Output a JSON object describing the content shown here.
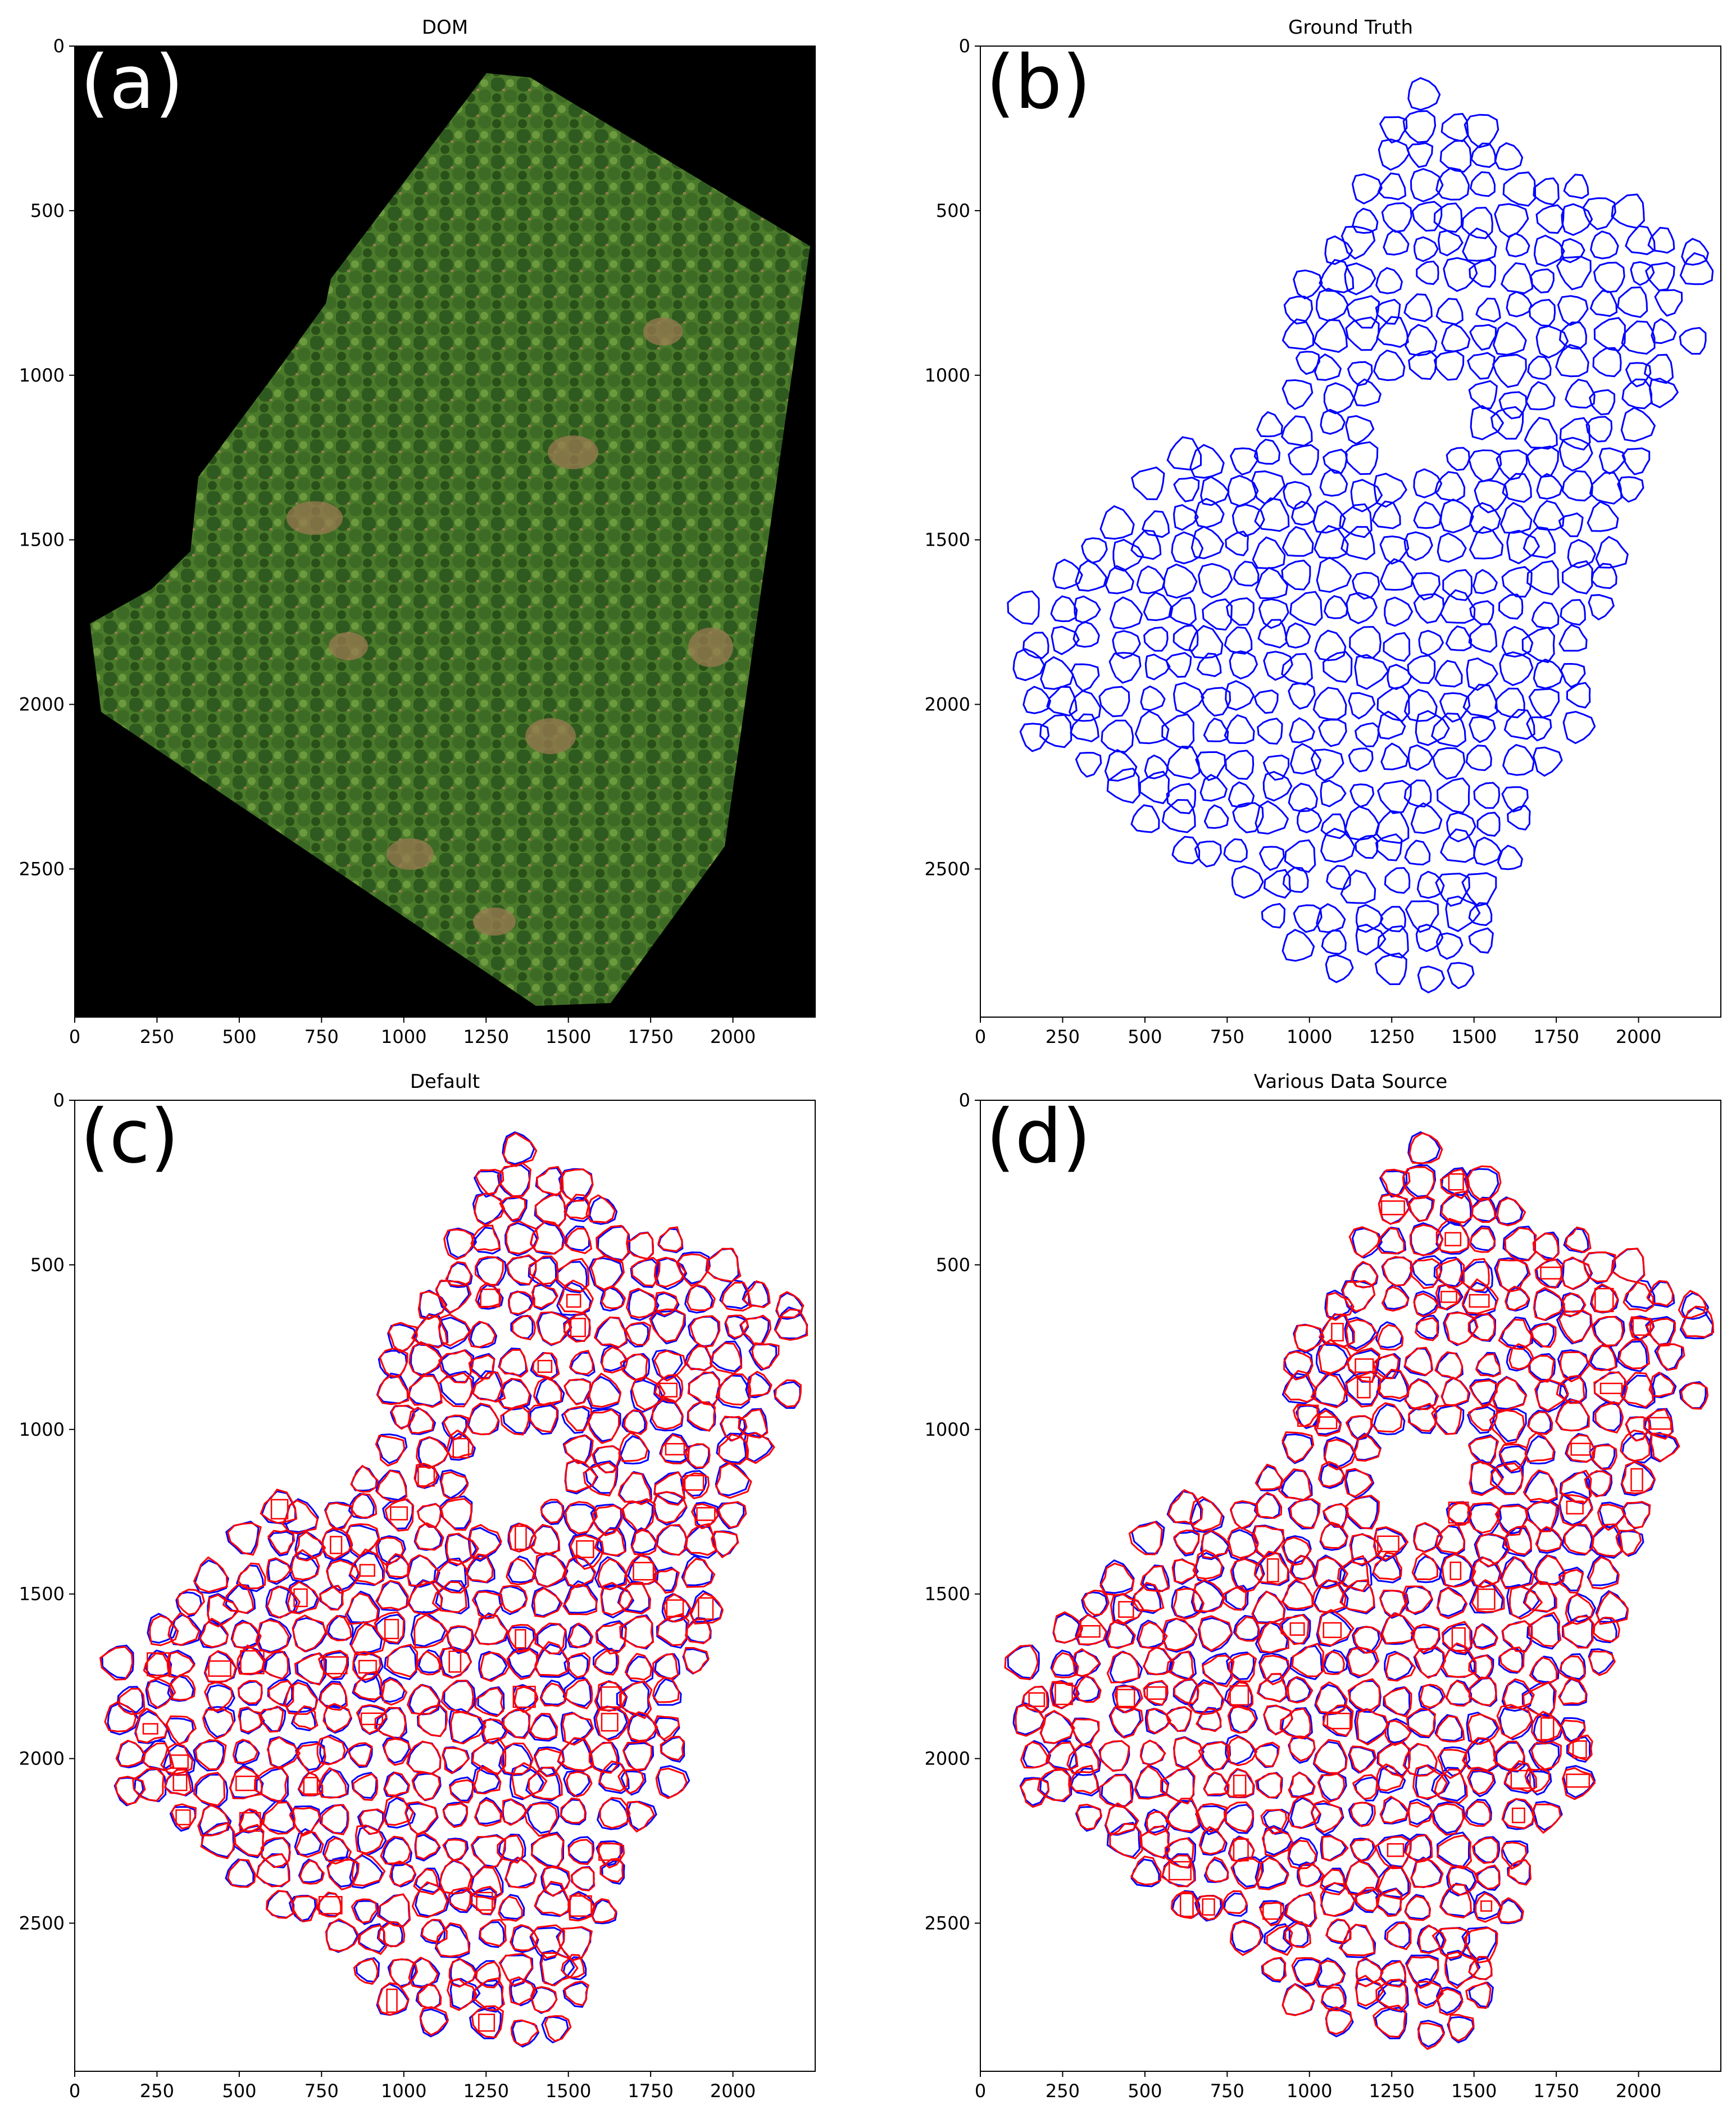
{
  "figure": {
    "panels": [
      {
        "id": "a",
        "letter": "(a)",
        "title": "DOM",
        "kind": "image"
      },
      {
        "id": "b",
        "letter": "(b)",
        "title": "Ground Truth",
        "kind": "gt"
      },
      {
        "id": "c",
        "letter": "(c)",
        "title": "Default",
        "kind": "overlay"
      },
      {
        "id": "d",
        "letter": "(d)",
        "title": "Various Data Source",
        "kind": "overlay"
      }
    ],
    "x_ticks": [
      "0",
      "250",
      "500",
      "750",
      "1000",
      "1250",
      "1500",
      "1750",
      "2000"
    ],
    "y_ticks": [
      "0",
      "500",
      "1000",
      "1500",
      "2000",
      "2500"
    ],
    "x_tick_values": [
      0,
      250,
      500,
      750,
      1000,
      1250,
      1500,
      1750,
      2000
    ],
    "y_tick_values": [
      0,
      500,
      1000,
      1500,
      2000,
      2500
    ],
    "xlim": [
      0,
      2250
    ],
    "ylim": [
      0,
      2950
    ],
    "colors": {
      "ground_truth": "#0000ff",
      "prediction": "#ff0000",
      "dom_background": "#000000",
      "canopy_dark": "#2f5a1f",
      "canopy_light": "#5c8a34",
      "soil": "#9a7a52"
    }
  }
}
